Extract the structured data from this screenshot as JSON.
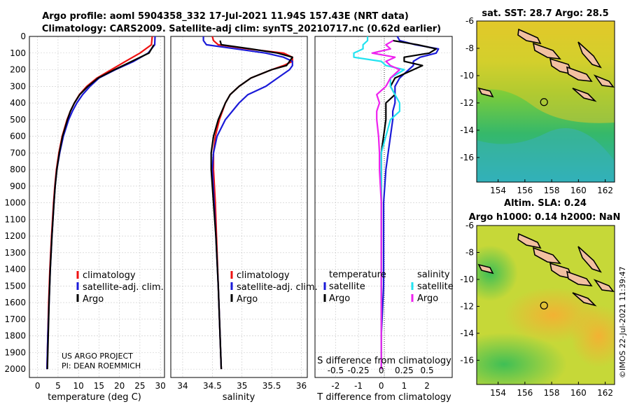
{
  "title": {
    "line1": "Argo profile: aoml 5904358_332 17-Jul-2021 11.94S 157.43E (NRT data)",
    "line2": "Climatology: CARS2009. Satellite-adj clim: synTS_20210717.nc (0.62d earlier)"
  },
  "colors": {
    "red": "#ee1111",
    "blue": "#1a1ad8",
    "black": "#000000",
    "cyan": "#22e3f0",
    "magenta": "#ee22ee"
  },
  "depth_ticks": [
    "0",
    "100",
    "200",
    "300",
    "400",
    "500",
    "600",
    "700",
    "800",
    "900",
    "1000",
    "1100",
    "1200",
    "1300",
    "1400",
    "1500",
    "1600",
    "1700",
    "1800",
    "1900",
    "2000"
  ],
  "credits": {
    "line1": "US ARGO PROJECT",
    "line2": "PI: DEAN ROEMMICH"
  },
  "legend": {
    "clim": "climatology",
    "sat": "satellite-adj. clim.",
    "argo": "Argo"
  },
  "diff_legend": {
    "temp_head": "temperature",
    "sal_head": "salinity",
    "satellite": "satellite",
    "argo": "Argo"
  },
  "chart_data": [
    {
      "type": "line",
      "id": "temperature",
      "xlabel": "temperature (deg C)",
      "ylabel": "depth",
      "xlim": [
        -2,
        31
      ],
      "ylim": [
        2050,
        0
      ],
      "x_ticks": [
        "0",
        "5",
        "10",
        "15",
        "20",
        "25",
        "30"
      ],
      "depth": [
        0,
        50,
        100,
        150,
        200,
        250,
        300,
        350,
        400,
        450,
        500,
        600,
        700,
        800,
        900,
        1000,
        1200,
        1400,
        1600,
        1800,
        2000
      ],
      "series": [
        {
          "name": "climatology",
          "color": "#ee1111",
          "values": [
            28.0,
            27.8,
            25.0,
            21.5,
            18.0,
            14.5,
            12.0,
            10.2,
            9.0,
            8.0,
            7.2,
            6.0,
            5.2,
            4.6,
            4.2,
            3.9,
            3.4,
            3.0,
            2.7,
            2.5,
            2.3
          ]
        },
        {
          "name": "satellite-adj. clim.",
          "color": "#1a1ad8",
          "values": [
            28.7,
            28.6,
            27.0,
            23.5,
            19.0,
            15.0,
            12.8,
            11.0,
            9.6,
            8.5,
            7.6,
            6.3,
            5.4,
            4.7,
            4.3,
            4.0,
            3.5,
            3.1,
            2.8,
            2.5,
            2.3
          ]
        },
        {
          "name": "Argo",
          "color": "#000000",
          "values": [
            null,
            28.4,
            27.2,
            23.0,
            18.8,
            14.8,
            12.3,
            10.3,
            9.0,
            8.0,
            7.3,
            6.1,
            5.3,
            4.7,
            4.3,
            4.0,
            3.5,
            3.1,
            2.8,
            2.6,
            2.4
          ]
        }
      ]
    },
    {
      "type": "line",
      "id": "salinity",
      "xlabel": "salinity",
      "xlim": [
        33.8,
        36.1
      ],
      "ylim": [
        2050,
        0
      ],
      "x_ticks": [
        "34",
        "34.5",
        "35",
        "35.5",
        "36"
      ],
      "depth": [
        0,
        25,
        50,
        75,
        100,
        125,
        150,
        175,
        200,
        250,
        300,
        350,
        400,
        500,
        600,
        700,
        800,
        1000,
        1200,
        1500,
        2000
      ],
      "series": [
        {
          "name": "climatology",
          "color": "#ee1111",
          "values": [
            34.5,
            34.52,
            34.6,
            35.1,
            35.7,
            35.85,
            35.85,
            35.7,
            35.5,
            35.15,
            34.95,
            34.8,
            34.72,
            34.62,
            34.55,
            34.52,
            34.52,
            34.55,
            34.57,
            34.6,
            34.65
          ]
        },
        {
          "name": "satellite-adj. clim.",
          "color": "#1a1ad8",
          "values": [
            34.35,
            34.35,
            34.4,
            34.9,
            35.4,
            35.7,
            35.85,
            35.85,
            35.8,
            35.6,
            35.4,
            35.1,
            34.95,
            34.72,
            34.58,
            34.52,
            34.5,
            34.53,
            34.56,
            34.6,
            34.65
          ]
        },
        {
          "name": "Argo",
          "color": "#000000",
          "values": [
            null,
            34.63,
            34.65,
            35.15,
            35.6,
            35.85,
            35.8,
            35.75,
            35.5,
            35.15,
            34.95,
            34.8,
            34.72,
            34.6,
            34.52,
            34.48,
            34.48,
            34.52,
            34.56,
            34.6,
            34.65
          ]
        }
      ]
    },
    {
      "type": "line",
      "id": "difference",
      "xlabel": "T difference from climatology",
      "x2label": "S difference from climatology",
      "xlim": [
        -2.9,
        3.1
      ],
      "ylim": [
        2050,
        0
      ],
      "x_ticks": [
        "-2",
        "-1",
        "0",
        "1",
        "2"
      ],
      "x2_ticks": [
        "-0.5",
        "-0.25",
        "0",
        "0.25",
        "0.5"
      ],
      "depth": [
        0,
        25,
        50,
        75,
        100,
        125,
        150,
        175,
        200,
        250,
        300,
        350,
        400,
        450,
        500,
        600,
        700,
        800,
        1000,
        1200,
        1500,
        1800,
        2000
      ],
      "series": [
        {
          "name": "temperature satellite",
          "color": "#1a1ad8",
          "values": [
            0.7,
            0.8,
            1.5,
            2.5,
            2.4,
            1.7,
            1.4,
            1.4,
            1.2,
            0.8,
            0.6,
            0.6,
            0.6,
            0.5,
            0.5,
            0.4,
            0.3,
            0.2,
            0.1,
            0.1,
            0.1,
            0.0,
            0.0
          ]
        },
        {
          "name": "temperature Argo",
          "color": "#000000",
          "values": [
            null,
            0.5,
            1.6,
            2.4,
            2.1,
            1.0,
            1.0,
            1.8,
            1.4,
            0.6,
            0.4,
            0.6,
            0.2,
            0.2,
            0.2,
            0.1,
            0.0,
            0.0,
            0.0,
            0.0,
            0.0,
            0.0,
            0.0
          ]
        },
        {
          "name": "salinity satellite",
          "color": "#22e3f0",
          "values": [
            -0.15,
            -0.15,
            -0.2,
            -0.2,
            -0.3,
            -0.3,
            0,
            0.05,
            0.25,
            0.1,
            0.1,
            0.15,
            0.2,
            0.2,
            0.1,
            0.05,
            0.0,
            0.0,
            0.0,
            0.0,
            0.0,
            0.0,
            0.0
          ]
        },
        {
          "name": "salinity Argo",
          "color": "#ee22ee",
          "values": [
            null,
            0.13,
            0.05,
            0.1,
            -0.1,
            0.15,
            0.05,
            0.1,
            0.2,
            0.1,
            0.05,
            -0.05,
            -0.02,
            -0.05,
            -0.05,
            -0.03,
            -0.02,
            -0.02,
            0.0,
            0.0,
            0.0,
            0.0,
            0.0
          ]
        }
      ]
    },
    {
      "type": "heatmap",
      "id": "sst-map",
      "title": "sat. SST: 28.7 Argo: 28.5",
      "x_ticks": [
        "154",
        "156",
        "158",
        "160",
        "162"
      ],
      "y_ticks": [
        "-6",
        "-8",
        "-10",
        "-12",
        "-14",
        "-16"
      ],
      "xlim": [
        152.4,
        162.7
      ],
      "ylim": [
        -17.8,
        -6.0
      ],
      "marker": {
        "lon": 157.43,
        "lat": -11.94
      }
    },
    {
      "type": "heatmap",
      "id": "sla-map",
      "title": "Altim. SLA: 0.24",
      "subtitle": "Argo h1000: 0.14 h2000: NaN",
      "x_ticks": [
        "154",
        "156",
        "158",
        "160",
        "162"
      ],
      "y_ticks": [
        "-6",
        "-8",
        "-10",
        "-12",
        "-14",
        "-16"
      ],
      "xlim": [
        152.4,
        162.7
      ],
      "ylim": [
        -17.8,
        -6.0
      ],
      "marker": {
        "lon": 157.43,
        "lat": -11.94
      }
    }
  ],
  "stamp": "©IMOS 22-Jul-2021 11:39:47"
}
